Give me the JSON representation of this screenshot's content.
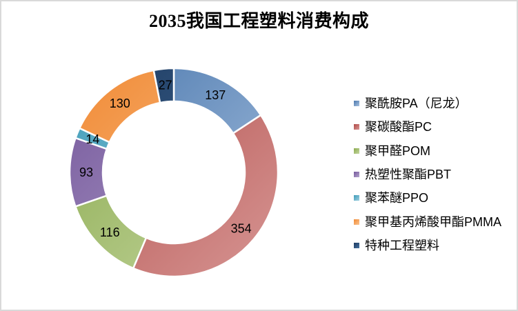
{
  "canvas": {
    "background": "#ffffff",
    "border_color": "#d9d9d9"
  },
  "chart_data": {
    "type": "pie",
    "subtype": "donut",
    "title": "2035我国工程塑料消费构成",
    "legend_position": "right",
    "data_labels": "value",
    "start_angle_deg": 0,
    "direction": "clockwise",
    "total": 871,
    "hole_ratio": 0.68,
    "slice_gap_color": "#ffffff",
    "series": [
      {
        "label": "聚酰胺PA（尼龙）",
        "value": 137,
        "color": "#4F81BD",
        "gradient": [
          "#4a77ad",
          "#a9c2e0"
        ]
      },
      {
        "label": "聚碳酸酯PC",
        "value": 354,
        "color": "#C0504D",
        "gradient": [
          "#b04a47",
          "#d79694"
        ]
      },
      {
        "label": "聚甲醛POM",
        "value": 116,
        "color": "#9BBB59",
        "gradient": [
          "#8aa94d",
          "#c6d8a2"
        ]
      },
      {
        "label": "热塑性聚酯PBT",
        "value": 93,
        "color": "#8064A2",
        "gradient": [
          "#75579b",
          "#b3a5cd"
        ]
      },
      {
        "label": "聚苯醚PPO",
        "value": 14,
        "color": "#4BACC6",
        "gradient": [
          "#3f9bb8",
          "#9ed0e0"
        ]
      },
      {
        "label": "聚甲基丙烯酸甲酯PMMA",
        "value": 130,
        "color": "#F79646",
        "gradient": [
          "#f08a35",
          "#fbc491"
        ]
      },
      {
        "label": "特种工程塑料",
        "value": 27,
        "color": "#2E5F8F",
        "gradient": [
          "#1e3a5f",
          "#44709f"
        ]
      }
    ]
  }
}
